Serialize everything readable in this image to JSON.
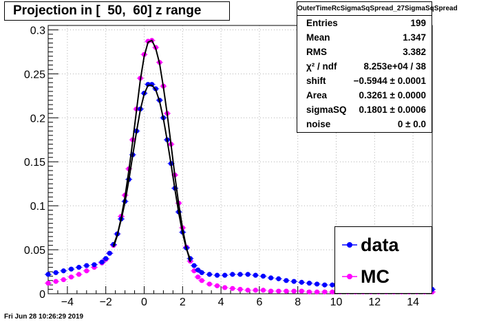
{
  "chart_data": {
    "type": "scatter",
    "title": "Projection in [  50,  60] z range",
    "xlabel": "",
    "ylabel": "",
    "xlim": [
      -5,
      15
    ],
    "ylim": [
      0,
      0.305
    ],
    "x_ticks": [
      "−4",
      "−2",
      "0",
      "2",
      "4",
      "6",
      "8",
      "10",
      "12",
      "14"
    ],
    "x_tick_values": [
      -4,
      -2,
      0,
      2,
      4,
      6,
      8,
      10,
      12,
      14
    ],
    "y_ticks": [
      "0",
      "0.05",
      "0.1",
      "0.15",
      "0.2",
      "0.25",
      "0.3"
    ],
    "y_tick_values": [
      0,
      0.05,
      0.1,
      0.15,
      0.2,
      0.25,
      0.3
    ],
    "grid": true,
    "legend_position": "bottom-right",
    "series": [
      {
        "name": "data",
        "color": "#0000ff",
        "marker": "circle",
        "x": [
          -5.0,
          -4.6,
          -4.2,
          -3.8,
          -3.4,
          -3.0,
          -2.6,
          -2.2,
          -2.0,
          -1.8,
          -1.6,
          -1.4,
          -1.2,
          -1.0,
          -0.8,
          -0.6,
          -0.4,
          -0.2,
          0.0,
          0.2,
          0.4,
          0.6,
          0.8,
          1.0,
          1.2,
          1.4,
          1.6,
          1.8,
          2.0,
          2.2,
          2.4,
          2.6,
          2.8,
          3.0,
          3.4,
          3.8,
          4.2,
          4.6,
          5.0,
          5.4,
          5.8,
          6.2,
          6.6,
          7.0,
          7.4,
          7.8,
          8.2,
          8.6,
          9.0,
          9.4,
          9.8,
          10.2,
          10.6,
          11.0,
          11.4,
          11.8,
          12.2,
          12.6,
          13.0,
          13.4,
          13.8,
          14.2,
          14.6,
          15.0
        ],
        "y": [
          0.022,
          0.024,
          0.026,
          0.028,
          0.03,
          0.032,
          0.033,
          0.036,
          0.04,
          0.046,
          0.056,
          0.068,
          0.085,
          0.105,
          0.13,
          0.158,
          0.185,
          0.21,
          0.228,
          0.238,
          0.238,
          0.233,
          0.22,
          0.2,
          0.175,
          0.148,
          0.12,
          0.093,
          0.07,
          0.052,
          0.04,
          0.032,
          0.027,
          0.024,
          0.022,
          0.021,
          0.021,
          0.022,
          0.022,
          0.022,
          0.021,
          0.02,
          0.018,
          0.017,
          0.015,
          0.014,
          0.013,
          0.012,
          0.011,
          0.01,
          0.01,
          0.009,
          0.009,
          0.008,
          0.008,
          0.007,
          0.007,
          0.007,
          0.006,
          0.006,
          0.006,
          0.005,
          0.005,
          0.005
        ]
      },
      {
        "name": "MC",
        "color": "#ff00ff",
        "marker": "circle",
        "x": [
          -5.0,
          -4.6,
          -4.2,
          -3.8,
          -3.4,
          -3.0,
          -2.6,
          -2.2,
          -2.0,
          -1.8,
          -1.6,
          -1.4,
          -1.2,
          -1.0,
          -0.8,
          -0.6,
          -0.4,
          -0.2,
          0.0,
          0.2,
          0.4,
          0.6,
          0.8,
          1.0,
          1.2,
          1.4,
          1.6,
          1.8,
          2.0,
          2.2,
          2.4,
          2.6,
          2.8,
          3.0,
          3.4,
          3.8,
          4.2,
          4.6,
          5.0,
          5.4,
          5.8,
          6.2,
          6.6,
          7.0,
          7.4,
          7.8,
          8.2,
          8.6,
          9.0,
          9.4,
          9.8,
          10.2,
          10.6,
          11.0,
          11.4,
          11.8,
          12.2,
          12.6,
          13.0,
          13.4,
          13.8,
          14.2,
          14.6,
          15.0
        ],
        "y": [
          0.012,
          0.014,
          0.016,
          0.019,
          0.022,
          0.026,
          0.03,
          0.035,
          0.039,
          0.046,
          0.055,
          0.068,
          0.088,
          0.112,
          0.142,
          0.175,
          0.21,
          0.245,
          0.272,
          0.287,
          0.288,
          0.28,
          0.263,
          0.236,
          0.205,
          0.17,
          0.135,
          0.103,
          0.075,
          0.053,
          0.037,
          0.026,
          0.019,
          0.015,
          0.011,
          0.009,
          0.007,
          0.006,
          0.005,
          0.004,
          0.004,
          0.004,
          0.003,
          0.003,
          0.003,
          0.003,
          0.003,
          0.002,
          0.002,
          0.002,
          0.002,
          0.002,
          0.002,
          0.002,
          0.002,
          0.002,
          0.002,
          0.002,
          0.002,
          0.002,
          0.002,
          0.002,
          0.002,
          0.002
        ]
      }
    ],
    "fits": [
      {
        "color": "#000000",
        "x": [
          -1.6,
          -1.4,
          -1.2,
          -1.0,
          -0.8,
          -0.6,
          -0.4,
          -0.2,
          0.0,
          0.2,
          0.4,
          0.6,
          0.8,
          1.0,
          1.2,
          1.4,
          1.6,
          1.8,
          2.0,
          2.2,
          2.4
        ],
        "y": [
          0.053,
          0.066,
          0.086,
          0.11,
          0.14,
          0.173,
          0.208,
          0.243,
          0.27,
          0.286,
          0.288,
          0.279,
          0.262,
          0.235,
          0.204,
          0.169,
          0.134,
          0.102,
          0.074,
          0.052,
          0.036
        ]
      },
      {
        "color": "#000000",
        "x": [
          -1.6,
          -1.4,
          -1.2,
          -1.0,
          -0.8,
          -0.6,
          -0.4,
          -0.2,
          0.0,
          0.2,
          0.4,
          0.6,
          0.8,
          1.0,
          1.2,
          1.4,
          1.6,
          1.8,
          2.0,
          2.2,
          2.4
        ],
        "y": [
          0.055,
          0.067,
          0.084,
          0.104,
          0.129,
          0.157,
          0.184,
          0.209,
          0.227,
          0.237,
          0.237,
          0.232,
          0.219,
          0.199,
          0.174,
          0.147,
          0.119,
          0.092,
          0.069,
          0.051,
          0.039
        ]
      }
    ]
  },
  "title_box": {
    "text": "Projection in [  50,  60] z range"
  },
  "stats": {
    "title": "OuterTimeRcSigmaSqSpread_27SigmaSqSpread",
    "rows": [
      {
        "label": "Entries",
        "value": "199"
      },
      {
        "label": "Mean",
        "value": "1.347"
      },
      {
        "label": "RMS",
        "value": "3.382"
      },
      {
        "label": "χ² / ndf",
        "value": "8.253e+04 / 38"
      },
      {
        "label": "shift",
        "value": "−0.5944 ± 0.0001"
      },
      {
        "label": "Area",
        "value": "0.3261 ± 0.0000"
      },
      {
        "label": "sigmaSQ",
        "value": "0.1801 ± 0.0006"
      },
      {
        "label": "noise",
        "value": "0 ± 0.0"
      }
    ]
  },
  "legend": {
    "items": [
      {
        "label": "data",
        "color": "#0000ff"
      },
      {
        "label": "MC",
        "color": "#ff00ff"
      }
    ]
  },
  "footer": {
    "timestamp": "Fri Jun 28 10:26:29 2019"
  }
}
